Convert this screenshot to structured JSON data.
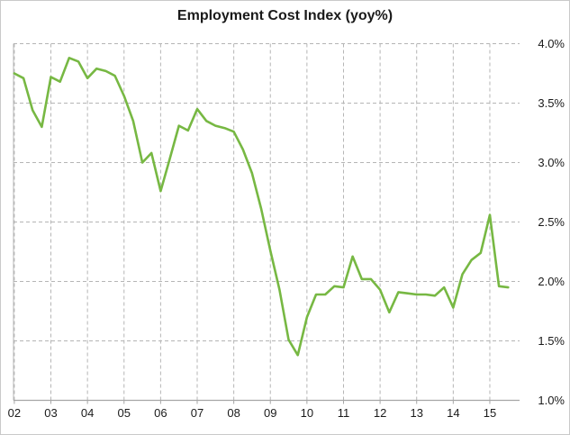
{
  "window": {
    "background": "#ffffff",
    "frame_border_color": "#c9c9c9"
  },
  "chart_data": {
    "type": "line",
    "title": "Employment Cost Index (yoy%)",
    "xlabel": "",
    "ylabel": "",
    "x_tick_labels": [
      "02",
      "03",
      "04",
      "05",
      "06",
      "07",
      "08",
      "09",
      "10",
      "11",
      "12",
      "13",
      "14",
      "15"
    ],
    "x_start": "2002 Q1",
    "x_end": "2015 Q3",
    "points_per_year": 4,
    "y_ticks": [
      {
        "value": 1.0,
        "label": "1.0%"
      },
      {
        "value": 1.5,
        "label": "1.5%"
      },
      {
        "value": 2.0,
        "label": "2.0%"
      },
      {
        "value": 2.5,
        "label": "2.5%"
      },
      {
        "value": 3.0,
        "label": "3.0%"
      },
      {
        "value": 3.5,
        "label": "3.5%"
      },
      {
        "value": 4.0,
        "label": "4.0%"
      }
    ],
    "ylim": [
      1.0,
      4.0
    ],
    "grid": "dashed",
    "legend_position": "none",
    "colors": {
      "line": "#77b843",
      "gridline": "#b5b5b5",
      "axis": "#a6a6a6",
      "labels": "#1a1a1a"
    },
    "series": [
      {
        "name": "Employment Cost Index (yoy%)",
        "quarterly_values": [
          3.75,
          3.71,
          3.44,
          3.3,
          3.72,
          3.68,
          3.88,
          3.85,
          3.71,
          3.79,
          3.77,
          3.73,
          3.56,
          3.35,
          3.0,
          3.08,
          2.76,
          3.03,
          3.31,
          3.27,
          3.45,
          3.35,
          3.31,
          3.29,
          3.26,
          3.11,
          2.91,
          2.61,
          2.26,
          1.93,
          1.51,
          1.38,
          1.7,
          1.89,
          1.89,
          1.96,
          1.95,
          2.21,
          2.02,
          2.02,
          1.93,
          1.74,
          1.91,
          1.9,
          1.89,
          1.89,
          1.88,
          1.95,
          1.78,
          2.06,
          2.18,
          2.24,
          2.56,
          1.96,
          1.95
        ]
      }
    ]
  }
}
